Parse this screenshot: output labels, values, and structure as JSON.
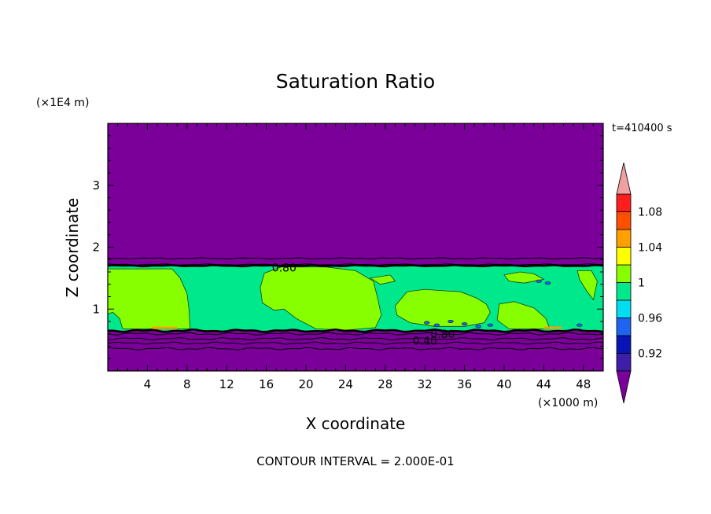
{
  "chart_data": {
    "type": "contour",
    "title": "Saturation Ratio",
    "xlabel": "X coordinate",
    "ylabel": "Z coordinate",
    "x_scale_label": "(×1000 m)",
    "y_scale_label": "(×1E4 m)",
    "time_label": "t=410400 s",
    "footer": "CONTOUR INTERVAL = 2.000E-01",
    "xlim": [
      0,
      50
    ],
    "ylim": [
      0,
      4
    ],
    "x_ticks": [
      4,
      8,
      12,
      16,
      20,
      24,
      28,
      32,
      36,
      40,
      44,
      48
    ],
    "y_ticks": [
      1,
      2,
      3
    ],
    "contour_labels": [
      {
        "text": "0.80",
        "x": 17.8,
        "z": 1.67
      },
      {
        "text": "0.80",
        "x": 33.8,
        "z": 0.6
      },
      {
        "text": "0.40",
        "x": 32.0,
        "z": 0.49
      }
    ],
    "cloud_layer": {
      "z_bottom": 0.65,
      "z_top": 1.7
    },
    "colorbar": {
      "labels": [
        "0.92",
        "0.96",
        "1",
        "1.04",
        "1.08"
      ],
      "levels": [
        0.9,
        0.92,
        0.94,
        0.96,
        0.98,
        1.0,
        1.02,
        1.04,
        1.06,
        1.08,
        1.1
      ],
      "colors": [
        "#7b0099",
        "#3d1ea8",
        "#0a14b4",
        "#1e64f0",
        "#00dcf0",
        "#00e88c",
        "#88ff00",
        "#ffff00",
        "#ffa000",
        "#ff5000",
        "#ff1e1e",
        "#f0a0a0"
      ]
    },
    "region_colors": {
      "dry": "#7b0099",
      "near_saturated": "#00e88c",
      "saturated": "#88ff00",
      "supersaturated": "#ffa000"
    }
  }
}
